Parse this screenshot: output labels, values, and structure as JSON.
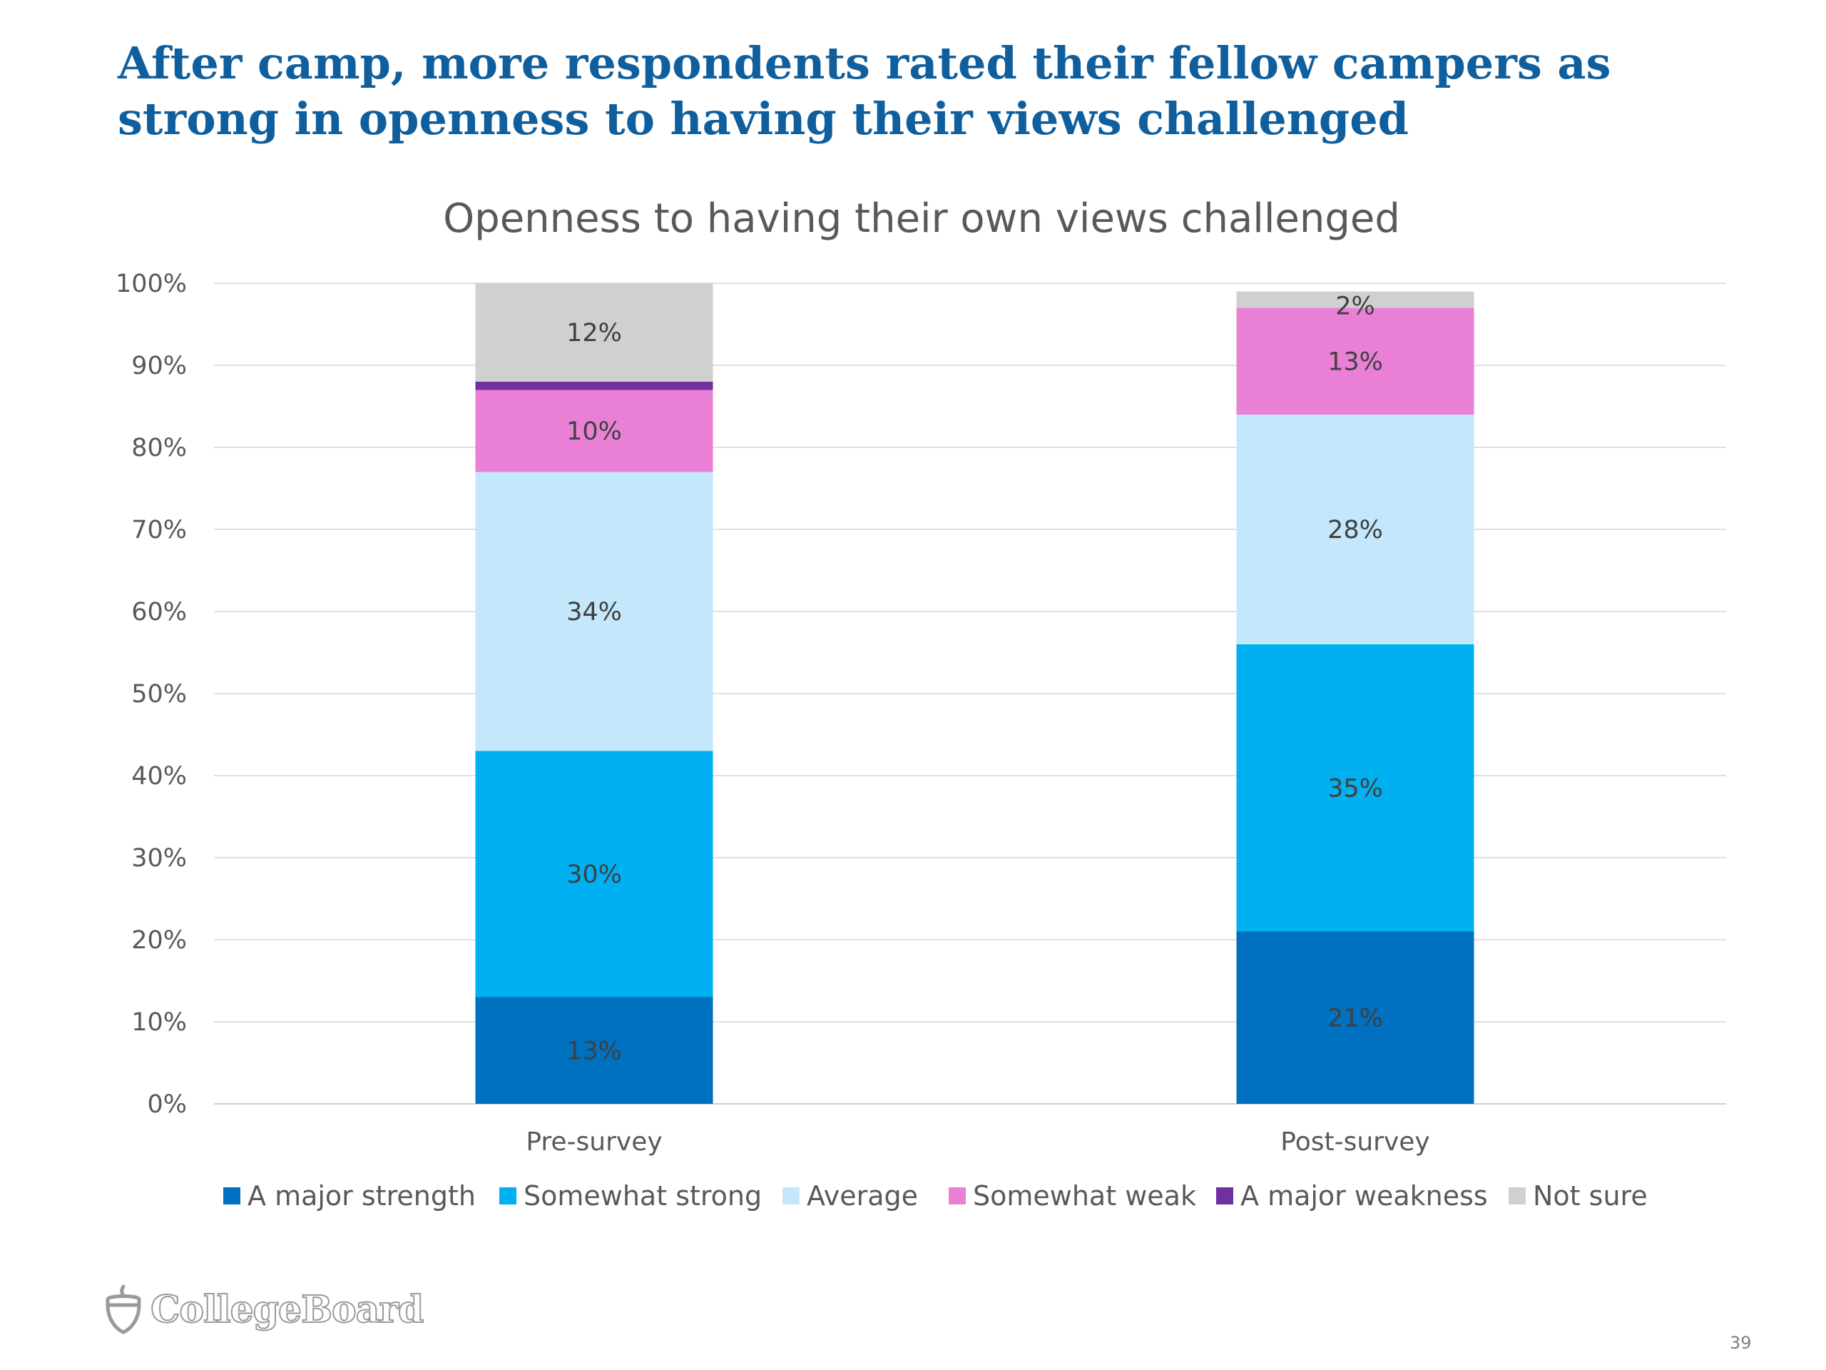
{
  "slide": {
    "title": "After camp, more respondents rated their fellow campers as strong in openness to having their views challenged",
    "logo_text": "CollegeBoard",
    "page_number": "39"
  },
  "chart_data": {
    "type": "bar",
    "stacked": true,
    "title": "Openness to having their own views challenged",
    "categories": [
      "Pre-survey",
      "Post-survey"
    ],
    "ylim": [
      0,
      100
    ],
    "yticks": [
      "0%",
      "10%",
      "20%",
      "30%",
      "40%",
      "50%",
      "60%",
      "70%",
      "80%",
      "90%",
      "100%"
    ],
    "grid": true,
    "legend_position": "bottom",
    "series": [
      {
        "name": "A major strength",
        "color": "#0070c0",
        "values": [
          13,
          21
        ],
        "labels": [
          "13%",
          "21%"
        ]
      },
      {
        "name": "Somewhat strong",
        "color": "#00b0f0",
        "values": [
          30,
          35
        ],
        "labels": [
          "30%",
          "35%"
        ]
      },
      {
        "name": "Average",
        "color": "#c5e7fb",
        "values": [
          34,
          28
        ],
        "labels": [
          "34%",
          "28%"
        ]
      },
      {
        "name": "Somewhat weak",
        "color": "#e980d6",
        "values": [
          10,
          13
        ],
        "labels": [
          "10%",
          "13%"
        ]
      },
      {
        "name": "A major weakness",
        "color": "#7030a0",
        "values": [
          1,
          0
        ],
        "labels": [
          "",
          ""
        ]
      },
      {
        "name": "Not sure",
        "color": "#d0d0d0",
        "values": [
          12,
          2
        ],
        "labels": [
          "12%",
          "2%"
        ]
      }
    ]
  }
}
